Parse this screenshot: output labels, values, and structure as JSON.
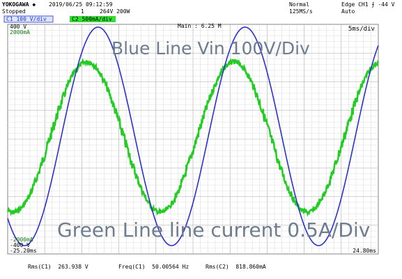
{
  "header": {
    "brand": "YOKOGAWA ◆",
    "datetime": "2019/06/25 09:12:59",
    "status": "Stopped",
    "count": "1",
    "range": "264V 200W",
    "mode": "Normal",
    "rate": "125MS/s",
    "trigger": "Edge CH1 ⨍ -44 V",
    "trigger_mode": "Auto"
  },
  "channels": [
    {
      "label": "C1 100 V/div"
    },
    {
      "label": "C2 500mA/div"
    }
  ],
  "screen": {
    "main": "Main : 6.25 M",
    "timebase": "5ms/div",
    "c1_top": "400 V",
    "c2_top": "2000mA",
    "c2_bottom": "-2000mA",
    "c1_bottom": "-400 V",
    "t_start": "-25.20ms",
    "t_end": "24.80ms"
  },
  "annotations": [
    "Blue Line Vin 100V/Div",
    "Green Line line current 0.5A/Div"
  ],
  "measurements": [
    "Rms(C1)  263.938 V",
    "Freq(C1)  50.00564 Hz",
    "Rms(C2)  818.860mA"
  ]
}
